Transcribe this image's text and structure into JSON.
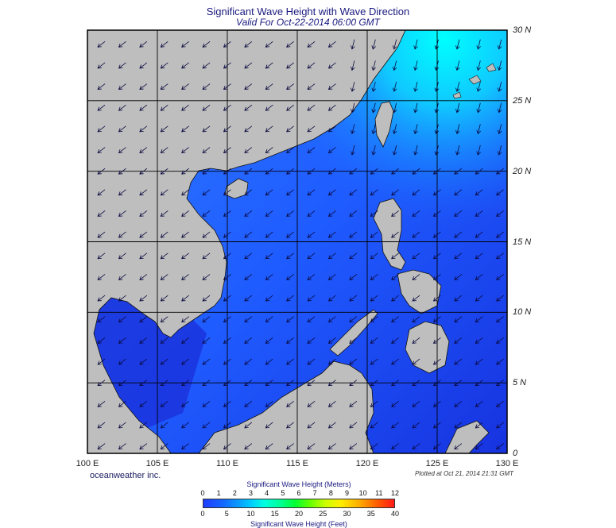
{
  "map": {
    "title": "Significant Wave Height with Wave Direction",
    "subtitle": "Valid For Oct-22-2014 06:00 GMT",
    "longitude_labels": [
      "100 E",
      "105 E",
      "110 E",
      "115 E",
      "120 E",
      "125 E",
      "130 E"
    ],
    "latitude_labels": [
      "30 N",
      "25 N",
      "20 N",
      "15 N",
      "10 N",
      "5 N",
      "0"
    ],
    "extent": {
      "lon_min": 100,
      "lon_max": 130,
      "lat_min": 0,
      "lat_max": 30
    },
    "credit": "oceanweather inc.",
    "plotted_at": "Plotted at Oct 21, 2014 21:31 GMT",
    "colors": {
      "land": "#bebebe",
      "ocean_low": "#1a2bd6",
      "ocean_mid": "#1f5cff",
      "ocean_high": "#00e6ff",
      "grid": "#000000",
      "arrow": "#0a0a40"
    },
    "wave_direction_note": ""
  },
  "colorbar": {
    "meters_title": "Significant Wave Height (Meters)",
    "feet_title": "Significant Wave Height (Feet)",
    "meters_ticks": [
      "0",
      "1",
      "2",
      "3",
      "4",
      "5",
      "6",
      "7",
      "8",
      "9",
      "10",
      "11",
      "12"
    ],
    "feet_ticks": [
      "0",
      "5",
      "10",
      "15",
      "20",
      "25",
      "30",
      "35",
      "40"
    ]
  }
}
